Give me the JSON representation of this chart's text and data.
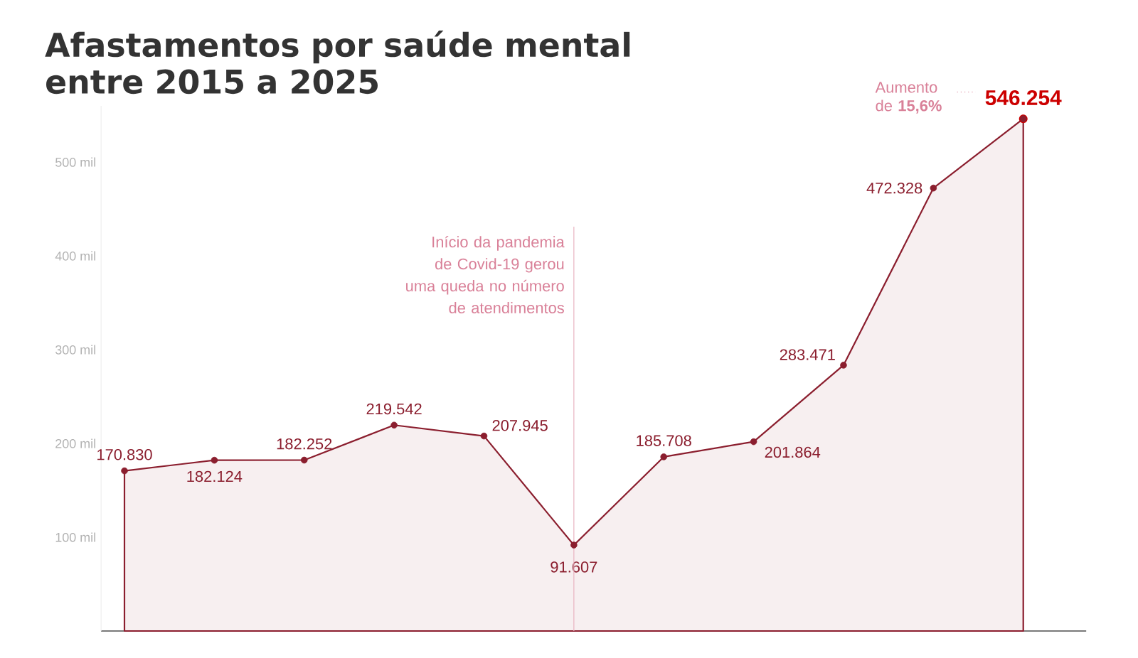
{
  "chart_data": {
    "type": "area",
    "title": "Afastamentos por saúde mental entre 2015 a 2025",
    "categories": [
      null,
      null,
      null,
      null,
      null,
      null,
      null,
      null,
      null,
      null,
      null
    ],
    "values": [
      170.83,
      182.124,
      182.252,
      219.542,
      207.945,
      91.607,
      185.708,
      201.864,
      283.471,
      472.328,
      546.254
    ],
    "value_labels": [
      "170.830",
      "182.124",
      "182.252",
      "219.542",
      "207.945",
      "91.607",
      "185.708",
      "201.864",
      "283.471",
      "472.328",
      "546.254"
    ],
    "color": "#8b1e2e",
    "marker": "circle",
    "ylim": [
      0,
      560
    ],
    "yticks": [
      {
        "value": 100,
        "label": "100 mil"
      },
      {
        "value": 200,
        "label": "200 mil"
      },
      {
        "value": 300,
        "label": "300 mil"
      },
      {
        "value": 400,
        "label": "400 mil"
      },
      {
        "value": 500,
        "label": "500 mil"
      }
    ],
    "annotations": [
      "Início da pandemia de Covid-19 gerou uma queda no número de atendimentos",
      "Aumento de **15,6%**"
    ]
  }
}
